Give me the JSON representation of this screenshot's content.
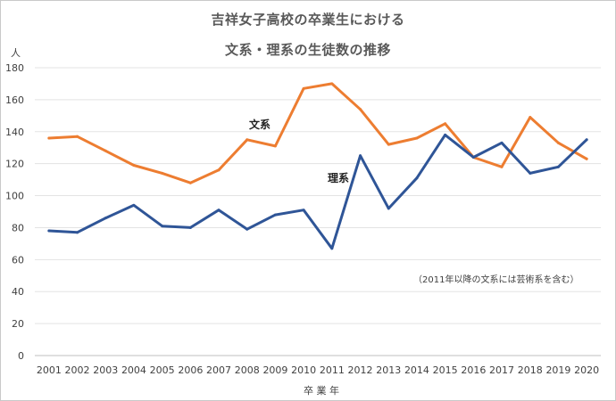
{
  "chart_data": {
    "type": "line",
    "title_line1": "吉祥女子高校の卒業生における",
    "title_line2": "文系・理系の生徒数の推移",
    "xlabel": "卒 業 年",
    "ylabel": "人",
    "ylim": [
      0,
      180
    ],
    "yticks": [
      0,
      20,
      40,
      60,
      80,
      100,
      120,
      140,
      160,
      180
    ],
    "grid": true,
    "categories": [
      "2001",
      "2002",
      "2003",
      "2004",
      "2005",
      "2006",
      "2007",
      "2008",
      "2009",
      "2010",
      "2011",
      "2012",
      "2013",
      "2014",
      "2015",
      "2016",
      "2017",
      "2018",
      "2019",
      "2020"
    ],
    "series": [
      {
        "name": "文系",
        "color": "#ED7D31",
        "values": [
          136,
          137,
          128,
          119,
          114,
          108,
          116,
          135,
          131,
          167,
          170,
          154,
          132,
          136,
          145,
          124,
          118,
          149,
          133,
          123
        ]
      },
      {
        "name": "理系",
        "color": "#2F5597",
        "values": [
          78,
          77,
          86,
          94,
          81,
          80,
          91,
          79,
          88,
          91,
          67,
          125,
          92,
          111,
          138,
          124,
          133,
          114,
          118,
          135
        ]
      }
    ],
    "annotation": "（2011年以降の文系には芸術系を含む）"
  }
}
